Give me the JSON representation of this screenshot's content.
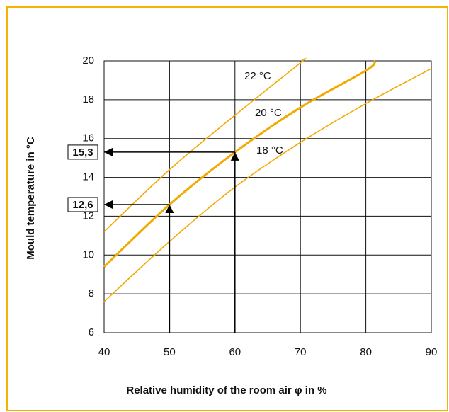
{
  "chart_data": {
    "type": "line",
    "xlabel": "Relative humidity of the room air φ in %",
    "ylabel": "Mould temperature in °C",
    "xlim": [
      40,
      90
    ],
    "xticks": [
      40,
      50,
      60,
      70,
      80,
      90
    ],
    "ylim": [
      6,
      20
    ],
    "yticks": [
      6,
      8,
      10,
      12,
      14,
      16,
      18,
      20
    ],
    "grid": true,
    "series": [
      {
        "name": "22 °C",
        "color": "#f2a900",
        "x": [
          40,
          50,
          60,
          70,
          70.2
        ],
        "values": [
          11.2,
          14.4,
          17.2,
          19.9,
          20
        ]
      },
      {
        "name": "20 °C",
        "color": "#f2a900",
        "x": [
          40,
          50,
          60,
          70,
          80,
          81.4
        ],
        "values": [
          9.4,
          12.6,
          15.3,
          17.6,
          19.5,
          20
        ]
      },
      {
        "name": "18 °C",
        "color": "#f2a900",
        "x": [
          40,
          50,
          60,
          70,
          80,
          90
        ],
        "values": [
          7.6,
          10.7,
          13.5,
          15.8,
          17.8,
          19.6
        ]
      }
    ],
    "annotations": [
      {
        "x": 60,
        "y": 15.3,
        "label": "15,3"
      },
      {
        "x": 50,
        "y": 12.6,
        "label": "12,6"
      }
    ]
  }
}
